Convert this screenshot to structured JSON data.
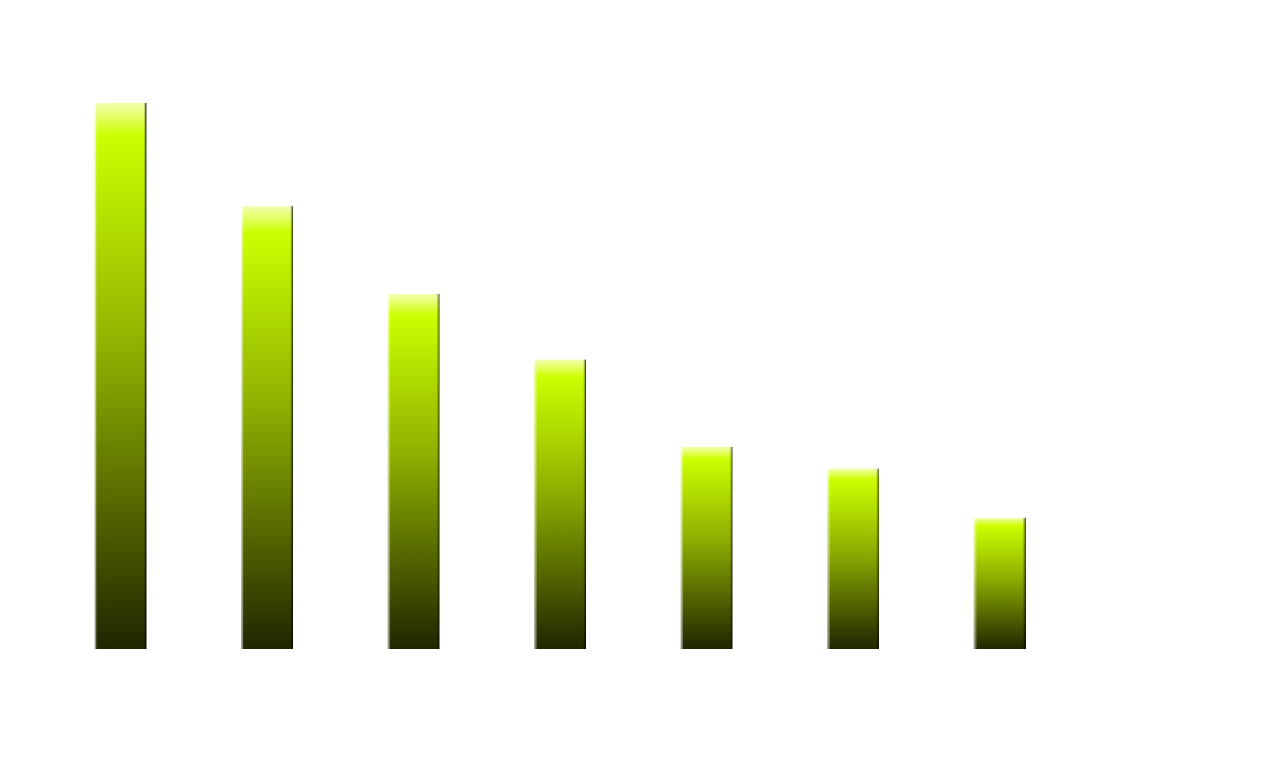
{
  "chart_data": {
    "type": "bar",
    "values": [
      100,
      81,
      65,
      53,
      37,
      33,
      24
    ],
    "color": "#ccff00",
    "ylim": [
      0,
      100
    ]
  }
}
